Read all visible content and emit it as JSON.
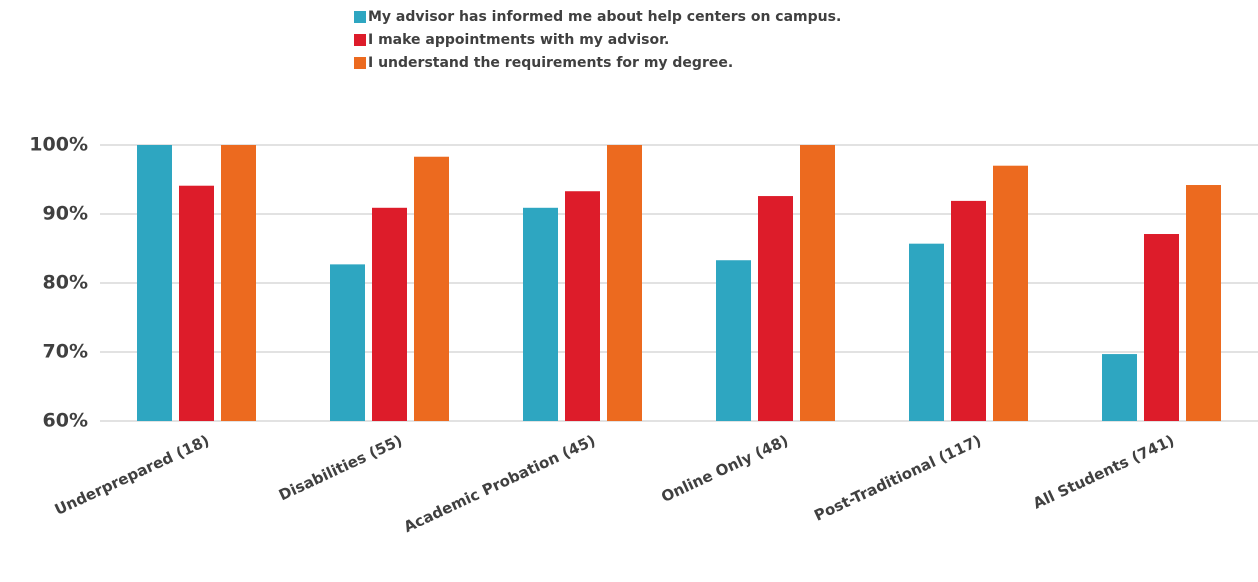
{
  "chart_data": {
    "type": "bar",
    "categories": [
      "Underprepared (18)",
      "Disabilities (55)",
      "Academic Probation (45)",
      "Online Only (48)",
      "Post-Traditional (117)",
      "All Students (741)"
    ],
    "series": [
      {
        "name": "My advisor has informed me about help centers on campus.",
        "color": "#2ea6c1",
        "values": [
          100,
          82.7,
          90.9,
          83.3,
          85.7,
          69.7
        ]
      },
      {
        "name": "I make appointments with my advisor.",
        "color": "#dd1c2a",
        "values": [
          94.1,
          90.9,
          93.3,
          92.6,
          91.9,
          87.1
        ]
      },
      {
        "name": "I understand the requirements for my degree.",
        "color": "#ec6a1f",
        "values": [
          100,
          98.3,
          100,
          100,
          97.0,
          94.2
        ]
      }
    ],
    "ylim": [
      60,
      100
    ],
    "yticks": [
      {
        "value": 60,
        "label": "60%"
      },
      {
        "value": 70,
        "label": "70%"
      },
      {
        "value": 80,
        "label": "80%"
      },
      {
        "value": 90,
        "label": "90%"
      },
      {
        "value": 100,
        "label": "100%"
      }
    ],
    "grid": true,
    "legend": "top"
  }
}
